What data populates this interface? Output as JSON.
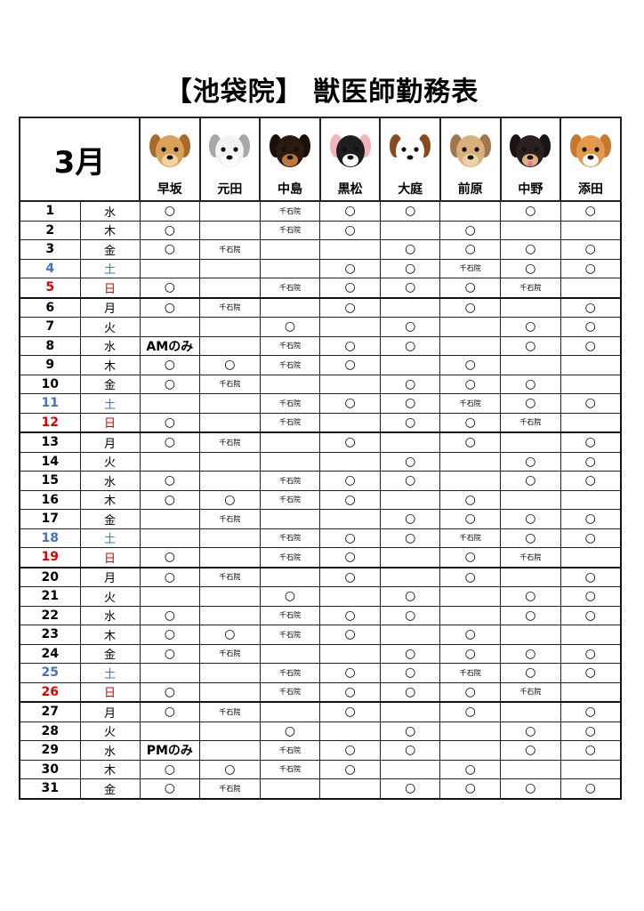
{
  "title": "【池袋院】 獣医師勤務表",
  "month": "3月",
  "colors": {
    "saturday": "#4472c4",
    "sunday": "#e00000"
  },
  "doctors": [
    {
      "name": "早坂",
      "icon": "golden-puppy-icon"
    },
    {
      "name": "元田",
      "icon": "shih-tzu-icon"
    },
    {
      "name": "中島",
      "icon": "dachshund-icon"
    },
    {
      "name": "黒松",
      "icon": "french-bulldog-icon"
    },
    {
      "name": "大庭",
      "icon": "jack-russell-icon"
    },
    {
      "name": "前原",
      "icon": "yorkshire-terrier-icon"
    },
    {
      "name": "中野",
      "icon": "chihuahua-icon"
    },
    {
      "name": "添田",
      "icon": "shiba-icon"
    }
  ],
  "rows": [
    {
      "day": "1",
      "wd": "水",
      "cells": [
        "○",
        "",
        "千石院",
        "○",
        "○",
        "",
        "○",
        "○"
      ]
    },
    {
      "day": "2",
      "wd": "木",
      "cells": [
        "○",
        "",
        "千石院",
        "○",
        "",
        "○",
        "",
        ""
      ]
    },
    {
      "day": "3",
      "wd": "金",
      "cells": [
        "○",
        "千石院",
        "",
        "",
        "○",
        "○",
        "○",
        "○"
      ]
    },
    {
      "day": "4",
      "wd": "土",
      "cells": [
        "",
        "",
        "",
        "○",
        "○",
        "千石院",
        "○",
        "○"
      ]
    },
    {
      "day": "5",
      "wd": "日",
      "cells": [
        "○",
        "",
        "千石院",
        "○",
        "○",
        "○",
        "千石院",
        ""
      ]
    },
    {
      "day": "6",
      "wd": "月",
      "cells": [
        "○",
        "千石院",
        "",
        "○",
        "",
        "○",
        "",
        "○"
      ]
    },
    {
      "day": "7",
      "wd": "火",
      "cells": [
        "",
        "",
        "○",
        "",
        "○",
        "",
        "○",
        "○"
      ]
    },
    {
      "day": "8",
      "wd": "水",
      "cells": [
        "AMのみ",
        "",
        "千石院",
        "○",
        "○",
        "",
        "○",
        "○"
      ]
    },
    {
      "day": "9",
      "wd": "木",
      "cells": [
        "○",
        "○",
        "千石院",
        "○",
        "",
        "○",
        "",
        ""
      ]
    },
    {
      "day": "10",
      "wd": "金",
      "cells": [
        "○",
        "千石院",
        "",
        "",
        "○",
        "○",
        "○",
        ""
      ]
    },
    {
      "day": "11",
      "wd": "土",
      "cells": [
        "",
        "",
        "千石院",
        "○",
        "○",
        "千石院",
        "○",
        "○"
      ]
    },
    {
      "day": "12",
      "wd": "日",
      "cells": [
        "○",
        "",
        "千石院",
        "",
        "○",
        "○",
        "千石院",
        ""
      ]
    },
    {
      "day": "13",
      "wd": "月",
      "cells": [
        "○",
        "千石院",
        "",
        "○",
        "",
        "○",
        "",
        "○"
      ]
    },
    {
      "day": "14",
      "wd": "火",
      "cells": [
        "",
        "",
        "",
        "",
        "○",
        "",
        "○",
        "○"
      ]
    },
    {
      "day": "15",
      "wd": "水",
      "cells": [
        "○",
        "",
        "千石院",
        "○",
        "○",
        "",
        "○",
        "○"
      ]
    },
    {
      "day": "16",
      "wd": "木",
      "cells": [
        "○",
        "○",
        "千石院",
        "○",
        "",
        "○",
        "",
        ""
      ]
    },
    {
      "day": "17",
      "wd": "金",
      "cells": [
        "",
        "千石院",
        "",
        "",
        "○",
        "○",
        "○",
        "○"
      ]
    },
    {
      "day": "18",
      "wd": "土",
      "cells": [
        "",
        "",
        "千石院",
        "○",
        "○",
        "千石院",
        "○",
        "○"
      ]
    },
    {
      "day": "19",
      "wd": "日",
      "cells": [
        "○",
        "",
        "千石院",
        "○",
        "",
        "○",
        "千石院",
        ""
      ]
    },
    {
      "day": "20",
      "wd": "月",
      "cells": [
        "○",
        "千石院",
        "",
        "○",
        "",
        "○",
        "",
        "○"
      ]
    },
    {
      "day": "21",
      "wd": "火",
      "cells": [
        "",
        "",
        "○",
        "",
        "○",
        "",
        "○",
        "○"
      ]
    },
    {
      "day": "22",
      "wd": "水",
      "cells": [
        "○",
        "",
        "千石院",
        "○",
        "○",
        "",
        "○",
        "○"
      ]
    },
    {
      "day": "23",
      "wd": "木",
      "cells": [
        "○",
        "○",
        "千石院",
        "○",
        "",
        "○",
        "",
        ""
      ]
    },
    {
      "day": "24",
      "wd": "金",
      "cells": [
        "○",
        "千石院",
        "",
        "",
        "○",
        "○",
        "○",
        "○"
      ]
    },
    {
      "day": "25",
      "wd": "土",
      "cells": [
        "",
        "",
        "千石院",
        "○",
        "○",
        "千石院",
        "○",
        "○"
      ]
    },
    {
      "day": "26",
      "wd": "日",
      "cells": [
        "○",
        "",
        "千石院",
        "○",
        "○",
        "○",
        "千石院",
        ""
      ]
    },
    {
      "day": "27",
      "wd": "月",
      "cells": [
        "○",
        "千石院",
        "",
        "○",
        "",
        "○",
        "",
        "○"
      ]
    },
    {
      "day": "28",
      "wd": "火",
      "cells": [
        "",
        "",
        "○",
        "",
        "○",
        "",
        "○",
        "○"
      ]
    },
    {
      "day": "29",
      "wd": "水",
      "cells": [
        "PMのみ",
        "",
        "千石院",
        "○",
        "○",
        "",
        "○",
        "○"
      ]
    },
    {
      "day": "30",
      "wd": "木",
      "cells": [
        "○",
        "○",
        "千石院",
        "○",
        "",
        "○",
        "",
        ""
      ]
    },
    {
      "day": "31",
      "wd": "金",
      "cells": [
        "○",
        "千石院",
        "",
        "",
        "○",
        "○",
        "○",
        "○"
      ]
    }
  ]
}
